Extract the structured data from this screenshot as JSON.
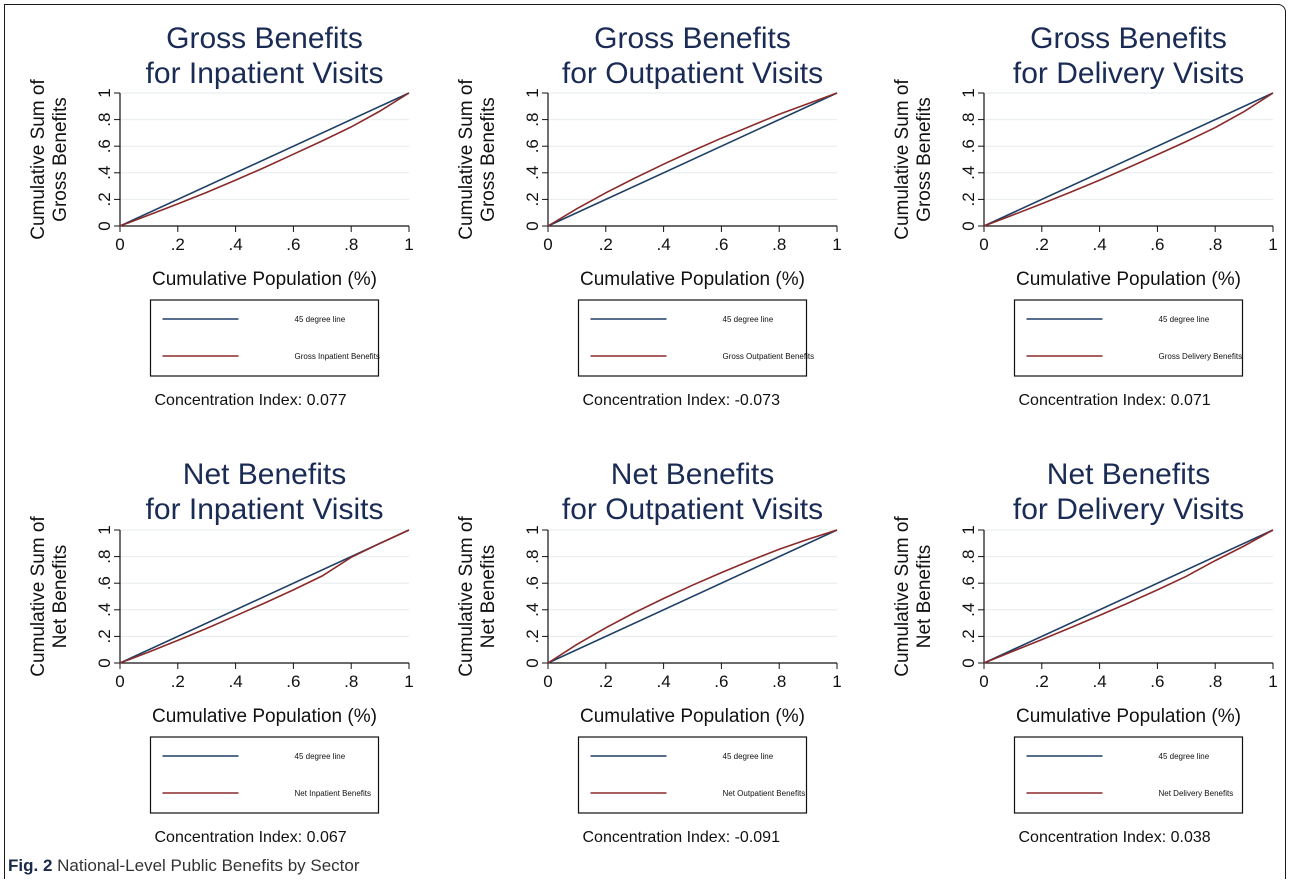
{
  "caption": {
    "label": "Fig. 2",
    "text": "National-Level Public Benefits by Sector"
  },
  "colors": {
    "line_45": "#1f3f66",
    "line_benefit": "#8b2a2a",
    "title": "#1a2b55"
  },
  "chart_data": [
    {
      "type": "line",
      "title": [
        "Gross Benefits",
        "for Inpatient Visits"
      ],
      "xlabel": "Cumulative Population (%)",
      "ylabel": [
        "Cumulative Sum of",
        "Gross Benefits"
      ],
      "xlim": [
        0,
        1
      ],
      "ylim": [
        0,
        1
      ],
      "xticks": [
        "0",
        ".2",
        ".4",
        ".6",
        ".8",
        "1"
      ],
      "yticks": [
        "0",
        ".2",
        ".4",
        ".6",
        ".8",
        "1"
      ],
      "grid": true,
      "series": [
        {
          "name": "45 degree line",
          "x": [
            0,
            1
          ],
          "y": [
            0,
            1
          ]
        },
        {
          "name": "Gross Inpatient Benefits",
          "x": [
            0,
            0.1,
            0.2,
            0.3,
            0.4,
            0.5,
            0.6,
            0.7,
            0.8,
            0.9,
            1
          ],
          "y": [
            0,
            0.083,
            0.166,
            0.253,
            0.345,
            0.44,
            0.54,
            0.64,
            0.745,
            0.865,
            1
          ]
        }
      ],
      "concentration_index": "Concentration Index: 0.077"
    },
    {
      "type": "line",
      "title": [
        "Gross Benefits",
        "for Outpatient Visits"
      ],
      "xlabel": "Cumulative Population (%)",
      "ylabel": [
        "Cumulative Sum of",
        "Gross Benefits"
      ],
      "xlim": [
        0,
        1
      ],
      "ylim": [
        0,
        1
      ],
      "xticks": [
        "0",
        ".2",
        ".4",
        ".6",
        ".8",
        "1"
      ],
      "yticks": [
        "0",
        ".2",
        ".4",
        ".6",
        ".8",
        "1"
      ],
      "grid": true,
      "series": [
        {
          "name": "45 degree line",
          "x": [
            0,
            1
          ],
          "y": [
            0,
            1
          ]
        },
        {
          "name": "Gross Outpatient Benefits",
          "x": [
            0,
            0.1,
            0.2,
            0.3,
            0.4,
            0.5,
            0.6,
            0.7,
            0.8,
            0.9,
            1
          ],
          "y": [
            0,
            0.13,
            0.25,
            0.36,
            0.465,
            0.565,
            0.66,
            0.75,
            0.84,
            0.92,
            1
          ]
        }
      ],
      "concentration_index": "Concentration Index: -0.073"
    },
    {
      "type": "line",
      "title": [
        "Gross Benefits",
        "for Delivery Visits"
      ],
      "xlabel": "Cumulative Population (%)",
      "ylabel": [
        "Cumulative Sum of",
        "Gross Benefits"
      ],
      "xlim": [
        0,
        1
      ],
      "ylim": [
        0,
        1
      ],
      "xticks": [
        "0",
        ".2",
        ".4",
        ".6",
        ".8",
        "1"
      ],
      "yticks": [
        "0",
        ".2",
        ".4",
        ".6",
        ".8",
        "1"
      ],
      "grid": true,
      "series": [
        {
          "name": "45 degree line",
          "x": [
            0,
            1
          ],
          "y": [
            0,
            1
          ]
        },
        {
          "name": "Gross Delivery Benefits",
          "x": [
            0,
            0.1,
            0.2,
            0.3,
            0.4,
            0.5,
            0.6,
            0.7,
            0.8,
            0.9,
            1
          ],
          "y": [
            0,
            0.083,
            0.167,
            0.255,
            0.345,
            0.44,
            0.537,
            0.635,
            0.74,
            0.86,
            1
          ]
        }
      ],
      "concentration_index": "Concentration Index: 0.071"
    },
    {
      "type": "line",
      "title": [
        "Net Benefits",
        "for Inpatient Visits"
      ],
      "xlabel": "Cumulative Population (%)",
      "ylabel": [
        "Cumulative Sum of",
        "Net Benefits"
      ],
      "xlim": [
        0,
        1
      ],
      "ylim": [
        0,
        1
      ],
      "xticks": [
        "0",
        ".2",
        ".4",
        ".6",
        ".8",
        "1"
      ],
      "yticks": [
        "0",
        ".2",
        ".4",
        ".6",
        ".8",
        "1"
      ],
      "grid": true,
      "series": [
        {
          "name": "45 degree line",
          "x": [
            0,
            1
          ],
          "y": [
            0,
            1
          ]
        },
        {
          "name": "Net Inpatient Benefits",
          "x": [
            0,
            0.1,
            0.2,
            0.3,
            0.4,
            0.5,
            0.6,
            0.7,
            0.8,
            0.9,
            1
          ],
          "y": [
            0,
            0.083,
            0.17,
            0.26,
            0.355,
            0.45,
            0.55,
            0.655,
            0.795,
            0.9,
            1
          ]
        }
      ],
      "concentration_index": "Concentration Index: 0.067"
    },
    {
      "type": "line",
      "title": [
        "Net Benefits",
        "for Outpatient Visits"
      ],
      "xlabel": "Cumulative Population (%)",
      "ylabel": [
        "Cumulative Sum of",
        "Net Benefits"
      ],
      "xlim": [
        0,
        1
      ],
      "ylim": [
        0,
        1
      ],
      "xticks": [
        "0",
        ".2",
        ".4",
        ".6",
        ".8",
        "1"
      ],
      "yticks": [
        "0",
        ".2",
        ".4",
        ".6",
        ".8",
        "1"
      ],
      "grid": true,
      "series": [
        {
          "name": "45 degree line",
          "x": [
            0,
            1
          ],
          "y": [
            0,
            1
          ]
        },
        {
          "name": "Net Outpatient Benefits",
          "x": [
            0,
            0.1,
            0.2,
            0.3,
            0.4,
            0.5,
            0.6,
            0.7,
            0.8,
            0.9,
            1
          ],
          "y": [
            0,
            0.14,
            0.265,
            0.38,
            0.485,
            0.585,
            0.68,
            0.77,
            0.855,
            0.93,
            1
          ]
        }
      ],
      "concentration_index": "Concentration Index: -0.091"
    },
    {
      "type": "line",
      "title": [
        "Net Benefits",
        "for Delivery Visits"
      ],
      "xlabel": "Cumulative Population (%)",
      "ylabel": [
        "Cumulative Sum of",
        "Net Benefits"
      ],
      "xlim": [
        0,
        1
      ],
      "ylim": [
        0,
        1
      ],
      "xticks": [
        "0",
        ".2",
        ".4",
        ".6",
        ".8",
        "1"
      ],
      "yticks": [
        "0",
        ".2",
        ".4",
        ".6",
        ".8",
        "1"
      ],
      "grid": true,
      "series": [
        {
          "name": "45 degree line",
          "x": [
            0,
            1
          ],
          "y": [
            0,
            1
          ]
        },
        {
          "name": "Net Delivery Benefits",
          "x": [
            0,
            0.1,
            0.2,
            0.3,
            0.4,
            0.5,
            0.6,
            0.7,
            0.8,
            0.9,
            1
          ],
          "y": [
            0,
            0.088,
            0.176,
            0.266,
            0.358,
            0.452,
            0.55,
            0.652,
            0.77,
            0.88,
            1
          ]
        }
      ],
      "concentration_index": "Concentration Index: 0.038"
    }
  ]
}
